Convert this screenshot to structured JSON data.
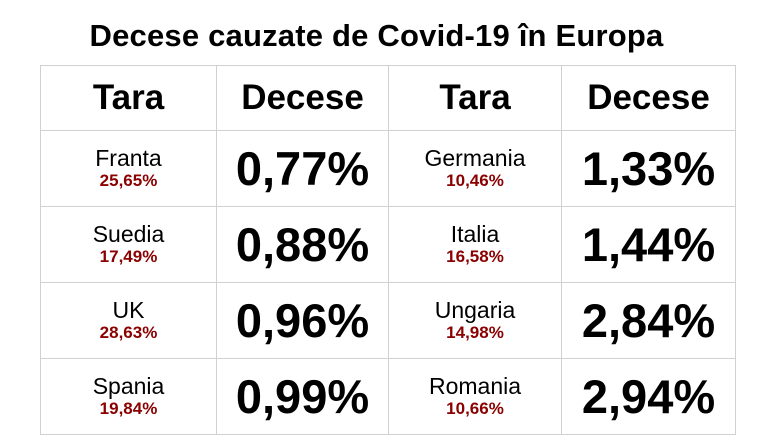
{
  "title": "Decese cauzate de Covid-19 în Europa",
  "colors": {
    "share": "#8b0000",
    "border": "#d0d0d0"
  },
  "headers": [
    "Tara",
    "Decese",
    "Tara",
    "Decese"
  ],
  "rows": [
    {
      "left": {
        "country": "Franta",
        "share": "25,65%",
        "rate": "0,77%"
      },
      "right": {
        "country": "Germania",
        "share": "10,46%",
        "rate": "1,33%"
      }
    },
    {
      "left": {
        "country": "Suedia",
        "share": "17,49%",
        "rate": "0,88%"
      },
      "right": {
        "country": "Italia",
        "share": "16,58%",
        "rate": "1,44%"
      }
    },
    {
      "left": {
        "country": "UK",
        "share": "28,63%",
        "rate": "0,96%"
      },
      "right": {
        "country": "Ungaria",
        "share": "14,98%",
        "rate": "2,84%"
      }
    },
    {
      "left": {
        "country": "Spania",
        "share": "19,84%",
        "rate": "0,99%"
      },
      "right": {
        "country": "Romania",
        "share": "10,66%",
        "rate": "2,94%"
      }
    }
  ]
}
